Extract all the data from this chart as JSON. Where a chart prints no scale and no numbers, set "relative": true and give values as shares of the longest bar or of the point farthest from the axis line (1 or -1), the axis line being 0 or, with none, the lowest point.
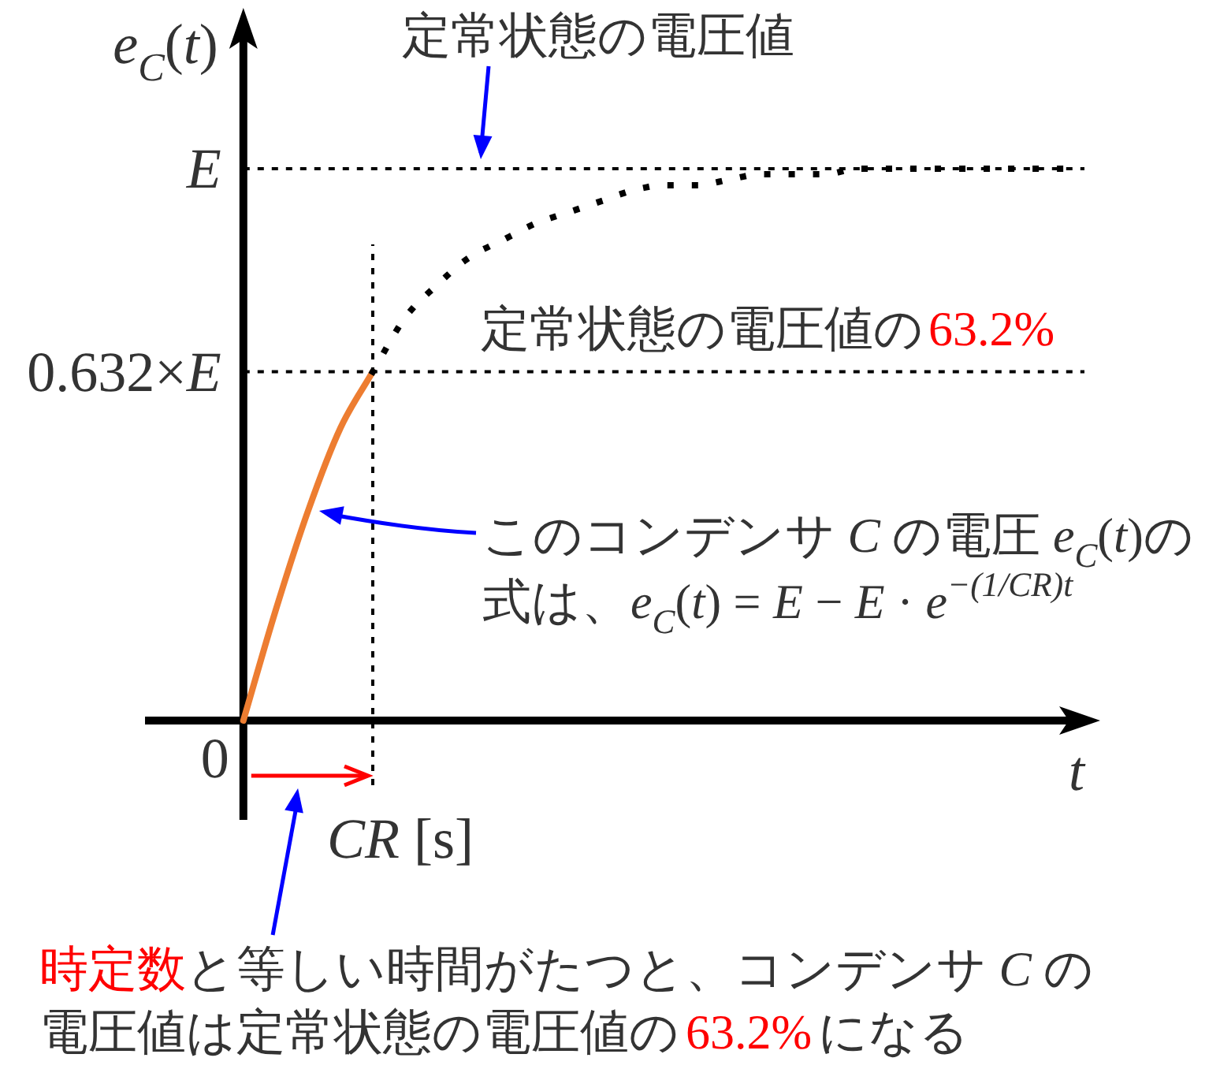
{
  "chart_data": {
    "type": "line",
    "relative": true,
    "xlabel": "*t*",
    "ylabel": "*e*$_{C}$(*t*)",
    "categories": [
      null,
      null,
      null,
      null,
      null,
      null,
      null,
      null,
      null,
      null,
      null,
      null,
      null,
      null,
      null,
      null,
      null,
      null,
      null,
      null,
      null,
      null,
      null,
      null,
      null,
      null,
      null
    ],
    "series": [
      {
        "name": "*E*",
        "color": "#000000",
        "line_style": "dashed",
        "values": [
          1,
          1,
          1,
          1,
          1,
          1,
          1,
          1,
          1,
          1,
          1,
          1,
          1,
          1,
          1,
          1,
          1,
          1,
          1,
          1,
          1,
          1,
          1,
          1,
          1,
          1,
          1
        ]
      },
      {
        "name": "0.632×*E*",
        "color": "#000000",
        "line_style": "dashed",
        "values": [
          0.632,
          0.632,
          0.632,
          0.632,
          0.632,
          0.632,
          0.632,
          0.632,
          0.632,
          0.632,
          0.632,
          0.632,
          0.632,
          0.632,
          0.632,
          0.632,
          0.632,
          0.632,
          0.632,
          0.632,
          0.632,
          0.632,
          0.632,
          0.632,
          0.632,
          0.632,
          0.632
        ]
      },
      {
        "color": "#ed7d31",
        "line_style": "solid",
        "values": [
          0,
          0.2,
          0.38,
          0.53,
          0.632,
          null,
          null,
          null,
          null,
          null,
          null,
          null,
          null,
          null,
          null,
          null,
          null,
          null,
          null,
          null,
          null,
          null,
          null,
          null,
          null,
          null,
          null
        ]
      },
      {
        "color": "#000000",
        "line_style": "dotted",
        "values": [
          null,
          null,
          null,
          null,
          0.632,
          0.73,
          0.79,
          0.84,
          0.87,
          0.9,
          0.92,
          0.94,
          0.96,
          0.97,
          0.97,
          0.98,
          0.99,
          0.99,
          0.99,
          1,
          1,
          1,
          1,
          1,
          1,
          1,
          1
        ]
      }
    ],
    "annotations": [
      "定常状態の電圧値",
      "定常状態の電圧値の",
      "63.2%",
      "このコンデンサ *C* の電圧 *e*$_{C}$(*t*)の",
      "式は、*e*$_{C}$(*t*) = *E* − *E* · *e*$^{−(1/CR)t}$",
      "時定数",
      "と等しい時間がたつと、コンデンサ *C* の",
      "電圧値は定常状態の電圧値の",
      "63.2%",
      "になる",
      "0",
      "*CR* [s]"
    ]
  }
}
